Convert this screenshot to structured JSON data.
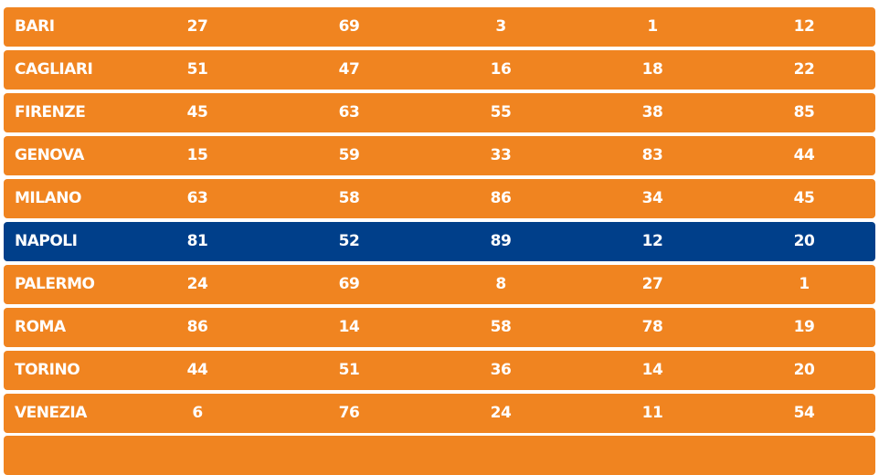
{
  "table": {
    "rows": [
      [
        "BARI",
        27,
        69,
        3,
        1,
        12
      ],
      [
        "CAGLIARI",
        51,
        47,
        16,
        18,
        22
      ],
      [
        "FIRENZE",
        45,
        63,
        55,
        38,
        85
      ],
      [
        "GENOVA",
        15,
        59,
        33,
        83,
        44
      ],
      [
        "MILANO",
        63,
        58,
        86,
        34,
        45
      ],
      [
        "NAPOLI",
        81,
        52,
        89,
        12,
        20
      ],
      [
        "PALERMO",
        24,
        69,
        8,
        27,
        1
      ],
      [
        "ROMA",
        86,
        14,
        58,
        78,
        19
      ],
      [
        "TORINO",
        44,
        51,
        36,
        14,
        20
      ],
      [
        "VENEZIA",
        6,
        76,
        24,
        11,
        54
      ]
    ]
  }
}
